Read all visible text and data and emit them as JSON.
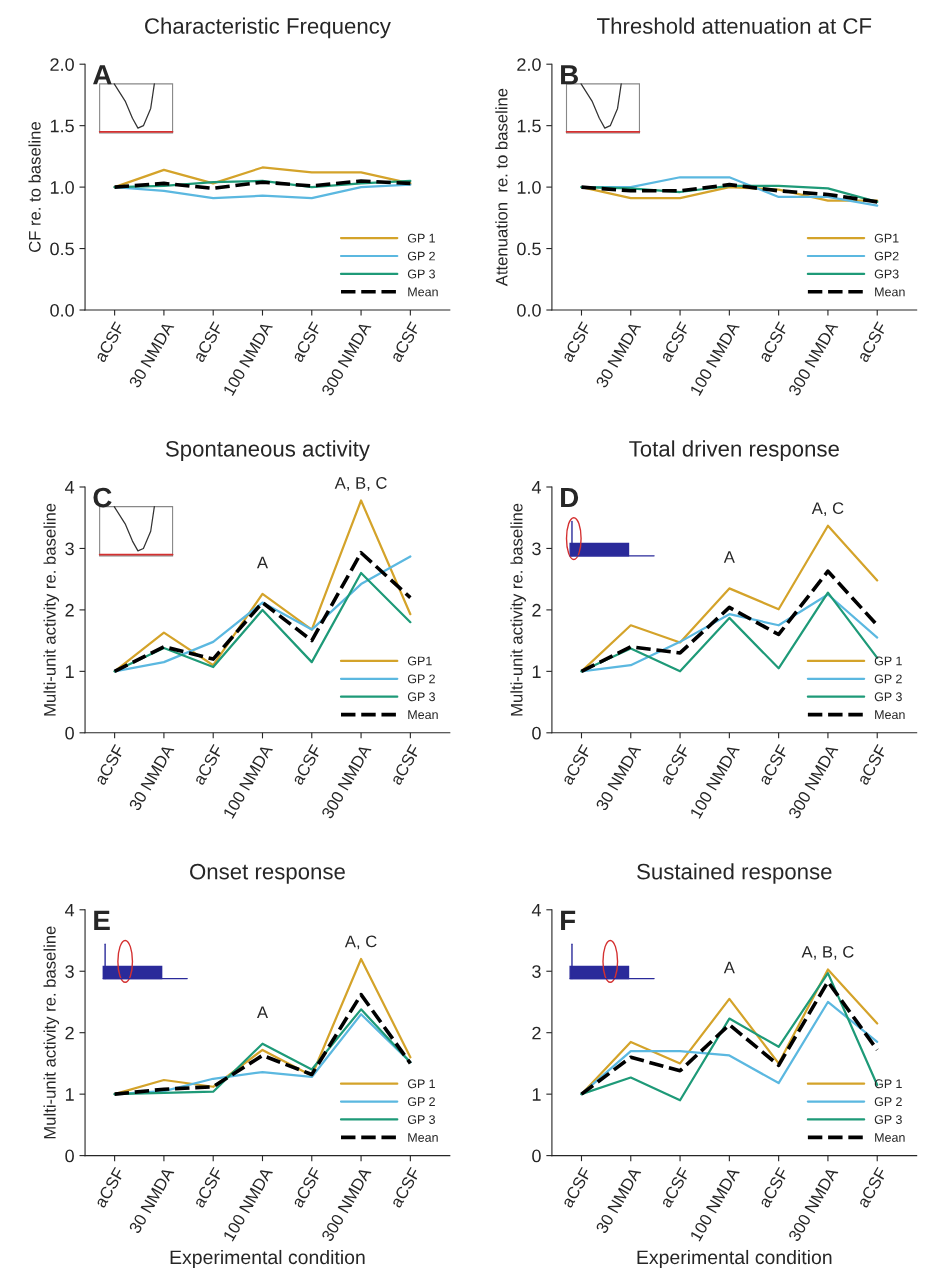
{
  "chart_data": [
    {
      "type": "line",
      "title": "Characteristic Frequency",
      "ylabel": "CF re. to baseline",
      "categories": [
        "aCSF",
        "30 NMDA",
        "aCSF",
        "100 NMDA",
        "aCSF",
        "300 NMDA",
        "aCSF"
      ],
      "ylim": [
        0,
        2
      ],
      "yticks": [
        {
          "value": 0,
          "label": "0.0"
        },
        {
          "value": 0.5,
          "label": "0.5"
        },
        {
          "value": 1,
          "label": "1.0"
        },
        {
          "value": 1.5,
          "label": "1.5"
        },
        {
          "value": 2,
          "label": "2.0"
        }
      ],
      "legend": "bottom right",
      "annotations": [
        "A"
      ],
      "series": [
        {
          "name": "GP 1",
          "color": "#d4a32a",
          "values": [
            1.0,
            1.14,
            1.03,
            1.16,
            1.12,
            1.12,
            1.03
          ]
        },
        {
          "name": "GP 2",
          "color": "#5bb8e0",
          "values": [
            1.0,
            0.97,
            0.91,
            0.93,
            0.91,
            1.0,
            1.02
          ]
        },
        {
          "name": "GP 3",
          "color": "#1e9a78",
          "values": [
            1.0,
            1.01,
            1.04,
            1.05,
            1.0,
            1.03,
            1.05
          ]
        },
        {
          "name": "Mean",
          "color": "#000000",
          "line_style": "dashed",
          "values": [
            1.0,
            1.03,
            0.99,
            1.04,
            1.01,
            1.05,
            1.03
          ]
        }
      ]
    },
    {
      "type": "line",
      "title": "Threshold attenuation at CF",
      "ylabel": "Attenuation  re. to baseline",
      "categories": [
        "aCSF",
        "30 NMDA",
        "aCSF",
        "100 NMDA",
        "aCSF",
        "300 NMDA",
        "aCSF"
      ],
      "ylim": [
        0,
        2
      ],
      "yticks": [
        {
          "value": 0,
          "label": "0.0"
        },
        {
          "value": 0.5,
          "label": "0.5"
        },
        {
          "value": 1,
          "label": "1.0"
        },
        {
          "value": 1.5,
          "label": "1.5"
        },
        {
          "value": 2,
          "label": "2.0"
        }
      ],
      "legend": "bottom right",
      "annotations": [
        "B"
      ],
      "series": [
        {
          "name": "GP1",
          "color": "#d4a32a",
          "values": [
            1.0,
            0.91,
            0.91,
            1.0,
            0.98,
            0.89,
            0.89
          ]
        },
        {
          "name": "GP2",
          "color": "#5bb8e0",
          "values": [
            1.0,
            1.0,
            1.08,
            1.08,
            0.92,
            0.92,
            0.85
          ]
        },
        {
          "name": "GP3",
          "color": "#1e9a78",
          "values": [
            1.0,
            0.99,
            0.96,
            1.01,
            1.01,
            0.99,
            0.88
          ]
        },
        {
          "name": "Mean",
          "color": "#000000",
          "line_style": "dashed",
          "values": [
            1.0,
            0.97,
            0.97,
            1.02,
            0.97,
            0.94,
            0.88
          ]
        }
      ]
    },
    {
      "type": "line",
      "title": "Spontaneous activity",
      "ylabel": "Multi-unit activity re. baseline",
      "categories": [
        "aCSF",
        "30 NMDA",
        "aCSF",
        "100 NMDA",
        "aCSF",
        "300 NMDA",
        "aCSF"
      ],
      "ylim": [
        0,
        4
      ],
      "yticks": [
        0,
        1,
        2,
        3,
        4
      ],
      "legend": "bottom right",
      "annotations": [
        "C",
        "A",
        "A, B, C"
      ],
      "series": [
        {
          "name": "GP1",
          "color": "#d4a32a",
          "values": [
            1.0,
            1.63,
            1.1,
            2.26,
            1.68,
            3.78,
            1.93
          ]
        },
        {
          "name": "GP 2",
          "color": "#5bb8e0",
          "values": [
            1.0,
            1.15,
            1.48,
            2.12,
            1.68,
            2.42,
            2.87
          ]
        },
        {
          "name": "GP 3",
          "color": "#1e9a78",
          "values": [
            1.0,
            1.38,
            1.07,
            2.0,
            1.15,
            2.6,
            1.8
          ]
        },
        {
          "name": "Mean",
          "color": "#000000",
          "line_style": "dashed",
          "values": [
            1.0,
            1.4,
            1.2,
            2.12,
            1.5,
            2.93,
            2.2
          ]
        }
      ]
    },
    {
      "type": "line",
      "title": "Total driven response",
      "ylabel": "Multi-unit activity re. baseline",
      "categories": [
        "aCSF",
        "30 NMDA",
        "aCSF",
        "100 NMDA",
        "aCSF",
        "300 NMDA",
        "aCSF"
      ],
      "ylim": [
        0,
        4
      ],
      "yticks": [
        0,
        1,
        2,
        3,
        4
      ],
      "legend": "bottom right",
      "annotations": [
        "D",
        "A",
        "A, C"
      ],
      "series": [
        {
          "name": "GP 1",
          "color": "#d4a32a",
          "values": [
            1.0,
            1.75,
            1.47,
            2.35,
            2.01,
            3.37,
            2.48
          ]
        },
        {
          "name": "GP 2",
          "color": "#5bb8e0",
          "values": [
            1.0,
            1.1,
            1.48,
            1.93,
            1.75,
            2.25,
            1.55
          ]
        },
        {
          "name": "GP 3",
          "color": "#1e9a78",
          "values": [
            1.0,
            1.37,
            1.0,
            1.87,
            1.05,
            2.28,
            1.22
          ]
        },
        {
          "name": "Mean",
          "color": "#000000",
          "line_style": "dashed",
          "values": [
            1.0,
            1.4,
            1.3,
            2.04,
            1.6,
            2.63,
            1.75
          ]
        }
      ]
    },
    {
      "type": "line",
      "title": "Onset response",
      "ylabel": "Multi-unit activity re. baseline",
      "xlabel": "Experimental condition",
      "categories": [
        "aCSF",
        "30 NMDA",
        "aCSF",
        "100 NMDA",
        "aCSF",
        "300 NMDA",
        "aCSF"
      ],
      "ylim": [
        0,
        4
      ],
      "yticks": [
        0,
        1,
        2,
        3,
        4
      ],
      "legend": "bottom right",
      "annotations": [
        "E",
        "A",
        "A, C"
      ],
      "series": [
        {
          "name": "GP 1",
          "color": "#d4a32a",
          "values": [
            1.0,
            1.23,
            1.12,
            1.72,
            1.3,
            3.2,
            1.6
          ]
        },
        {
          "name": "GP 2",
          "color": "#5bb8e0",
          "values": [
            1.0,
            1.05,
            1.25,
            1.36,
            1.28,
            2.3,
            1.52
          ]
        },
        {
          "name": "GP 3",
          "color": "#1e9a78",
          "values": [
            1.0,
            1.02,
            1.04,
            1.82,
            1.4,
            2.38,
            1.52
          ]
        },
        {
          "name": "Mean",
          "color": "#000000",
          "line_style": "dashed",
          "values": [
            1.0,
            1.08,
            1.12,
            1.63,
            1.32,
            2.62,
            1.5
          ]
        }
      ]
    },
    {
      "type": "line",
      "title": "Sustained response",
      "xlabel": "Experimental condition",
      "categories": [
        "aCSF",
        "30 NMDA",
        "aCSF",
        "100 NMDA",
        "aCSF",
        "300 NMDA",
        "aCSF"
      ],
      "ylim": [
        0,
        4
      ],
      "yticks": [
        0,
        1,
        2,
        3,
        4
      ],
      "legend": "bottom right",
      "annotations": [
        "F",
        "A",
        "A, B, C"
      ],
      "series": [
        {
          "name": "GP 1",
          "color": "#d4a32a",
          "values": [
            1.0,
            1.85,
            1.5,
            2.55,
            1.5,
            3.03,
            2.15
          ]
        },
        {
          "name": "GP 2",
          "color": "#5bb8e0",
          "values": [
            1.0,
            1.7,
            1.7,
            1.63,
            1.18,
            2.5,
            1.85
          ]
        },
        {
          "name": "GP 3",
          "color": "#1e9a78",
          "values": [
            1.0,
            1.27,
            0.9,
            2.23,
            1.77,
            2.97,
            1.15
          ]
        },
        {
          "name": "Mean",
          "color": "#000000",
          "line_style": "dashed",
          "values": [
            1.0,
            1.6,
            1.38,
            2.13,
            1.47,
            2.83,
            1.72
          ]
        }
      ]
    }
  ]
}
